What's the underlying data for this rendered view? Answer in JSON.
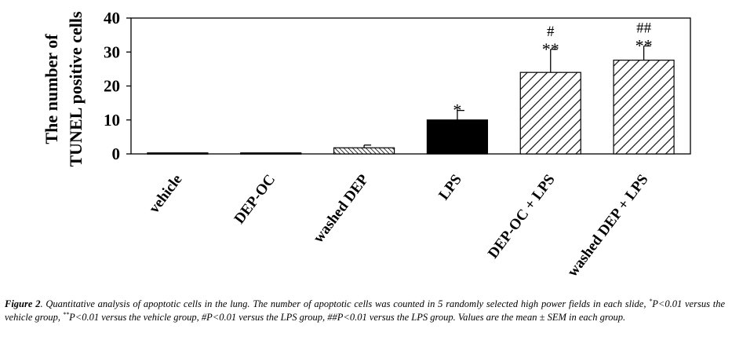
{
  "chart_data": {
    "type": "bar",
    "ylabel_line1": "The number of",
    "ylabel_line2": "TUNEL positive cells",
    "ylim": [
      0,
      40
    ],
    "yticks": [
      0,
      10,
      20,
      30,
      40
    ],
    "grid": false,
    "categories": [
      "vehicle",
      "DEP-OC",
      "washed DEP",
      "LPS",
      "DEP-OC + LPS",
      "washed DEP + LPS"
    ],
    "values": [
      0.3,
      0.3,
      1.8,
      10.0,
      24.0,
      27.6
    ],
    "errors": [
      0.0,
      0.0,
      0.8,
      2.8,
      6.8,
      4.2
    ],
    "fills": [
      "solid",
      "solid",
      "fine-hatch",
      "solid",
      "diagonal-hatch",
      "diagonal-hatch"
    ],
    "annotations": [
      {
        "index": 3,
        "lines": [
          "*"
        ]
      },
      {
        "index": 4,
        "lines": [
          "#",
          "**"
        ]
      },
      {
        "index": 5,
        "lines": [
          "##",
          "**"
        ]
      }
    ],
    "colors": {
      "bar": "#000000",
      "background": "#ffffff"
    }
  },
  "caption": {
    "figure_label": "Figure 2",
    "text_before_sup1": ". Quantitative analysis of apoptotic cells in the lung. The number of apoptotic cells was counted in 5 randomly selected high power fields in each slide, ",
    "sup1": "*",
    "text_after_sup1": "P<0.01 versus the vehicle group, ",
    "sup2": "**",
    "text_after_sup2": "P<0.01 versus the vehicle group, #P<0.01 versus the LPS group, ##P<0.01 versus the LPS group. Values are the mean ± SEM in each group."
  }
}
